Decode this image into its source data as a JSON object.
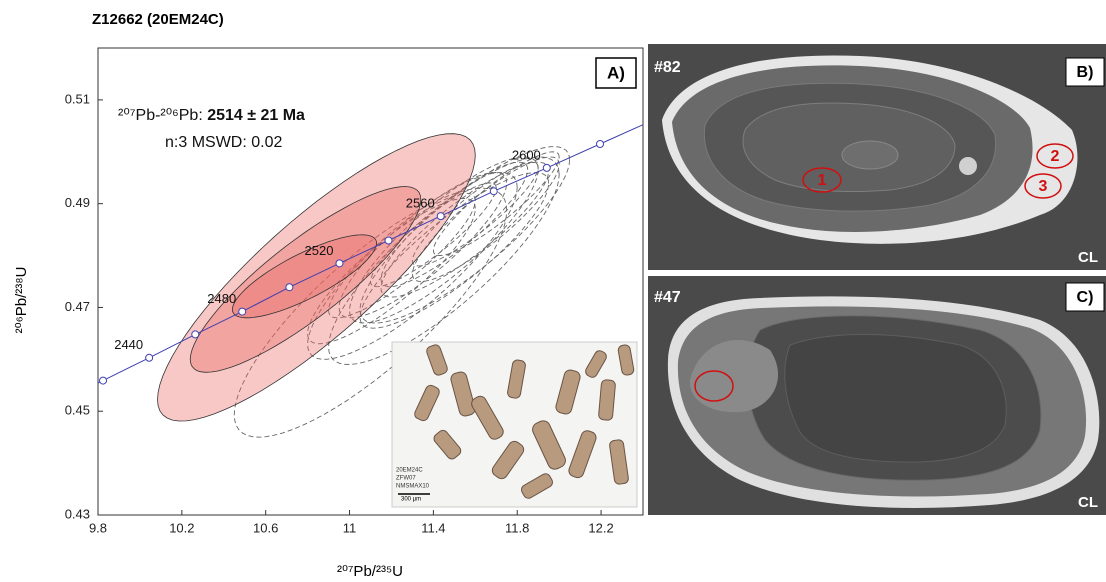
{
  "chart_data": {
    "type": "concordia",
    "title": "Z12662 (20EM24C)",
    "panel_label": "A)",
    "x_label": "²⁰⁷Pb/²³⁵U",
    "y_label": "²⁰⁶Pb/²³⁸U",
    "xlim": [
      9.8,
      12.4
    ],
    "ylim": [
      0.43,
      0.52
    ],
    "xticks": [
      9.8,
      10.2,
      10.6,
      11.0,
      11.4,
      11.8,
      12.2
    ],
    "yticks": [
      0.43,
      0.45,
      0.47,
      0.49,
      0.51
    ],
    "annotation": {
      "prefix": "²⁰⁷Pb-²⁰⁶Pb: ",
      "age": "2514 ± 21 Ma",
      "stats": "n:3 MSWD: 0.02"
    },
    "concordia": {
      "color": "#4040b0",
      "x": [
        9.824,
        10.044,
        10.264,
        10.488,
        10.713,
        10.952,
        11.186,
        11.435,
        11.688,
        11.941,
        12.195
      ],
      "y": [
        0.4559,
        0.4603,
        0.4648,
        0.4692,
        0.4739,
        0.4785,
        0.4829,
        0.4876,
        0.4924,
        0.4969,
        0.5015
      ],
      "labels": [
        null,
        "2440",
        null,
        "2480",
        null,
        "2520",
        null,
        "2560",
        null,
        "2600",
        null
      ]
    },
    "ellipses_selected": {
      "color": "#e8605c",
      "x": [
        10.842,
        10.79,
        10.785
      ],
      "y": [
        0.4758,
        0.4754,
        0.476
      ],
      "x_err": [
        0.758,
        0.55,
        0.344
      ],
      "y_err": [
        0.0277,
        0.0179,
        0.008
      ],
      "rho": [
        0.85,
        0.86,
        0.8
      ]
    },
    "ellipses_other": {
      "color": "#666666",
      "x": [
        11.25,
        11.35,
        11.4,
        11.45,
        11.5,
        11.55,
        11.6,
        11.3,
        11.5,
        11.65,
        11.7,
        11.2,
        11.45,
        11.55,
        11.1
      ],
      "y": [
        0.48,
        0.482,
        0.484,
        0.483,
        0.486,
        0.485,
        0.488,
        0.478,
        0.481,
        0.487,
        0.49,
        0.477,
        0.479,
        0.484,
        0.469
      ],
      "x_err": [
        0.35,
        0.4,
        0.3,
        0.45,
        0.35,
        0.4,
        0.3,
        0.5,
        0.45,
        0.35,
        0.3,
        0.4,
        0.55,
        0.5,
        0.65
      ],
      "y_err": [
        0.012,
        0.014,
        0.01,
        0.016,
        0.012,
        0.013,
        0.01,
        0.018,
        0.015,
        0.012,
        0.01,
        0.014,
        0.02,
        0.017,
        0.024
      ],
      "rho": [
        0.88,
        0.86,
        0.9,
        0.85,
        0.88,
        0.87,
        0.9,
        0.84,
        0.86,
        0.88,
        0.9,
        0.86,
        0.83,
        0.85,
        0.82
      ]
    },
    "inset": {
      "caption": [
        "20EM24C",
        "ZFW07",
        "NMSMAX10"
      ],
      "scale": "300 µm"
    }
  },
  "panels": [
    {
      "label": "B)",
      "grain": "#82",
      "mode": "CL",
      "spots": [
        "1",
        "2",
        "3"
      ]
    },
    {
      "label": "C)",
      "grain": "#47",
      "mode": "CL"
    }
  ]
}
